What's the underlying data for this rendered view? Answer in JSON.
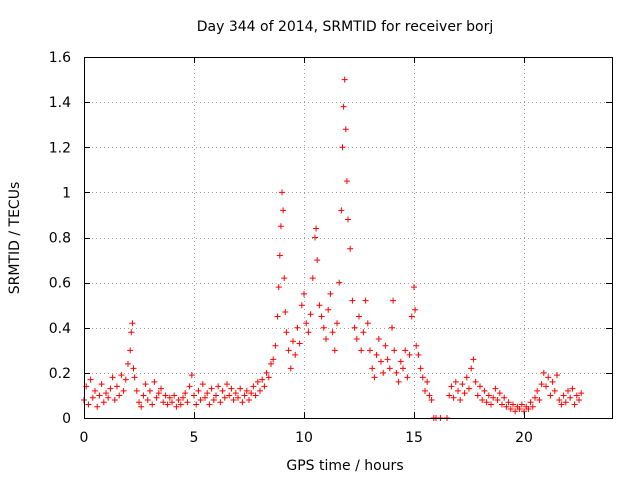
{
  "chart_data": {
    "type": "scatter",
    "title": "Day 344 of 2014, SRMTID for receiver borj",
    "xlabel": "GPS time / hours",
    "ylabel": "SRMTID / TECUs",
    "xlim": [
      0,
      24
    ],
    "ylim": [
      0,
      1.6
    ],
    "xticks": [
      0,
      5,
      10,
      15,
      20
    ],
    "xtick_labels": [
      "0",
      "5",
      "10",
      "15",
      "20"
    ],
    "yticks": [
      0,
      0.2,
      0.4,
      0.6,
      0.8,
      1.0,
      1.2,
      1.4,
      1.6
    ],
    "ytick_labels": [
      "0",
      "0.2",
      "0.4",
      "0.6",
      "0.8",
      "1",
      "1.2",
      "1.4",
      "1.6"
    ],
    "grid": true,
    "marker": "+",
    "series_color": "#ff0000",
    "series": [
      {
        "name": "SRMTID",
        "points": [
          [
            0.0,
            0.08
          ],
          [
            0.1,
            0.14
          ],
          [
            0.2,
            0.06
          ],
          [
            0.3,
            0.17
          ],
          [
            0.4,
            0.09
          ],
          [
            0.5,
            0.12
          ],
          [
            0.6,
            0.05
          ],
          [
            0.7,
            0.1
          ],
          [
            0.8,
            0.15
          ],
          [
            0.9,
            0.07
          ],
          [
            1.0,
            0.11
          ],
          [
            1.1,
            0.09
          ],
          [
            1.2,
            0.13
          ],
          [
            1.3,
            0.18
          ],
          [
            1.4,
            0.08
          ],
          [
            1.5,
            0.14
          ],
          [
            1.6,
            0.1
          ],
          [
            1.7,
            0.19
          ],
          [
            1.8,
            0.12
          ],
          [
            1.9,
            0.17
          ],
          [
            2.0,
            0.24
          ],
          [
            2.1,
            0.3
          ],
          [
            2.15,
            0.38
          ],
          [
            2.2,
            0.42
          ],
          [
            2.25,
            0.22
          ],
          [
            2.3,
            0.18
          ],
          [
            2.4,
            0.12
          ],
          [
            2.5,
            0.07
          ],
          [
            2.6,
            0.05
          ],
          [
            2.7,
            0.1
          ],
          [
            2.8,
            0.15
          ],
          [
            2.9,
            0.08
          ],
          [
            3.0,
            0.12
          ],
          [
            3.1,
            0.06
          ],
          [
            3.2,
            0.16
          ],
          [
            3.3,
            0.09
          ],
          [
            3.4,
            0.11
          ],
          [
            3.5,
            0.13
          ],
          [
            3.6,
            0.07
          ],
          [
            3.7,
            0.1
          ],
          [
            3.8,
            0.06
          ],
          [
            3.9,
            0.09
          ],
          [
            4.0,
            0.07
          ],
          [
            4.1,
            0.1
          ],
          [
            4.2,
            0.05
          ],
          [
            4.3,
            0.08
          ],
          [
            4.4,
            0.06
          ],
          [
            4.5,
            0.09
          ],
          [
            4.6,
            0.11
          ],
          [
            4.7,
            0.07
          ],
          [
            4.8,
            0.14
          ],
          [
            4.9,
            0.19
          ],
          [
            5.0,
            0.1
          ],
          [
            5.1,
            0.06
          ],
          [
            5.2,
            0.12
          ],
          [
            5.3,
            0.08
          ],
          [
            5.4,
            0.15
          ],
          [
            5.5,
            0.09
          ],
          [
            5.6,
            0.11
          ],
          [
            5.7,
            0.06
          ],
          [
            5.8,
            0.13
          ],
          [
            5.9,
            0.08
          ],
          [
            6.0,
            0.1
          ],
          [
            6.1,
            0.14
          ],
          [
            6.2,
            0.07
          ],
          [
            6.3,
            0.12
          ],
          [
            6.4,
            0.09
          ],
          [
            6.5,
            0.15
          ],
          [
            6.6,
            0.1
          ],
          [
            6.7,
            0.13
          ],
          [
            6.8,
            0.08
          ],
          [
            6.9,
            0.11
          ],
          [
            7.0,
            0.09
          ],
          [
            7.1,
            0.13
          ],
          [
            7.2,
            0.07
          ],
          [
            7.3,
            0.1
          ],
          [
            7.4,
            0.12
          ],
          [
            7.5,
            0.08
          ],
          [
            7.6,
            0.11
          ],
          [
            7.7,
            0.14
          ],
          [
            7.8,
            0.1
          ],
          [
            7.9,
            0.16
          ],
          [
            8.0,
            0.12
          ],
          [
            8.1,
            0.17
          ],
          [
            8.2,
            0.14
          ],
          [
            8.3,
            0.2
          ],
          [
            8.4,
            0.18
          ],
          [
            8.5,
            0.24
          ],
          [
            8.6,
            0.26
          ],
          [
            8.7,
            0.32
          ],
          [
            8.8,
            0.45
          ],
          [
            8.85,
            0.58
          ],
          [
            8.9,
            0.72
          ],
          [
            8.95,
            0.85
          ],
          [
            9.0,
            1.0
          ],
          [
            9.05,
            0.92
          ],
          [
            9.1,
            0.62
          ],
          [
            9.15,
            0.47
          ],
          [
            9.2,
            0.38
          ],
          [
            9.3,
            0.3
          ],
          [
            9.4,
            0.22
          ],
          [
            9.5,
            0.34
          ],
          [
            9.6,
            0.28
          ],
          [
            9.7,
            0.4
          ],
          [
            9.8,
            0.33
          ],
          [
            9.9,
            0.5
          ],
          [
            10.0,
            0.55
          ],
          [
            10.1,
            0.42
          ],
          [
            10.2,
            0.38
          ],
          [
            10.3,
            0.46
          ],
          [
            10.4,
            0.62
          ],
          [
            10.5,
            0.8
          ],
          [
            10.55,
            0.84
          ],
          [
            10.6,
            0.7
          ],
          [
            10.7,
            0.5
          ],
          [
            10.8,
            0.45
          ],
          [
            10.9,
            0.4
          ],
          [
            11.0,
            0.35
          ],
          [
            11.1,
            0.48
          ],
          [
            11.2,
            0.55
          ],
          [
            11.3,
            0.38
          ],
          [
            11.4,
            0.3
          ],
          [
            11.5,
            0.42
          ],
          [
            11.6,
            0.6
          ],
          [
            11.7,
            0.92
          ],
          [
            11.75,
            1.2
          ],
          [
            11.8,
            1.38
          ],
          [
            11.85,
            1.5
          ],
          [
            11.9,
            1.28
          ],
          [
            11.95,
            1.05
          ],
          [
            12.0,
            0.88
          ],
          [
            12.1,
            0.75
          ],
          [
            12.2,
            0.52
          ],
          [
            12.3,
            0.4
          ],
          [
            12.4,
            0.35
          ],
          [
            12.5,
            0.45
          ],
          [
            12.6,
            0.3
          ],
          [
            12.7,
            0.38
          ],
          [
            12.8,
            0.52
          ],
          [
            12.9,
            0.42
          ],
          [
            13.0,
            0.3
          ],
          [
            13.1,
            0.22
          ],
          [
            13.2,
            0.18
          ],
          [
            13.3,
            0.28
          ],
          [
            13.4,
            0.35
          ],
          [
            13.5,
            0.25
          ],
          [
            13.6,
            0.2
          ],
          [
            13.7,
            0.32
          ],
          [
            13.8,
            0.26
          ],
          [
            13.9,
            0.22
          ],
          [
            14.0,
            0.4
          ],
          [
            14.05,
            0.52
          ],
          [
            14.1,
            0.3
          ],
          [
            14.2,
            0.2
          ],
          [
            14.3,
            0.16
          ],
          [
            14.4,
            0.25
          ],
          [
            14.5,
            0.22
          ],
          [
            14.6,
            0.3
          ],
          [
            14.7,
            0.18
          ],
          [
            14.8,
            0.28
          ],
          [
            14.9,
            0.45
          ],
          [
            15.0,
            0.58
          ],
          [
            15.05,
            0.48
          ],
          [
            15.1,
            0.32
          ],
          [
            15.2,
            0.28
          ],
          [
            15.3,
            0.22
          ],
          [
            15.4,
            0.18
          ],
          [
            15.5,
            0.12
          ],
          [
            15.6,
            0.16
          ],
          [
            15.7,
            0.1
          ],
          [
            15.8,
            0.08
          ],
          [
            15.9,
            0.0
          ],
          [
            16.0,
            0.0
          ],
          [
            16.2,
            0.0
          ],
          [
            16.5,
            0.0
          ],
          [
            16.6,
            0.1
          ],
          [
            16.7,
            0.14
          ],
          [
            16.8,
            0.09
          ],
          [
            16.9,
            0.16
          ],
          [
            17.0,
            0.12
          ],
          [
            17.1,
            0.08
          ],
          [
            17.2,
            0.15
          ],
          [
            17.3,
            0.11
          ],
          [
            17.4,
            0.18
          ],
          [
            17.5,
            0.13
          ],
          [
            17.6,
            0.22
          ],
          [
            17.7,
            0.26
          ],
          [
            17.8,
            0.16
          ],
          [
            17.9,
            0.1
          ],
          [
            18.0,
            0.14
          ],
          [
            18.1,
            0.08
          ],
          [
            18.2,
            0.12
          ],
          [
            18.3,
            0.07
          ],
          [
            18.4,
            0.1
          ],
          [
            18.5,
            0.06
          ],
          [
            18.6,
            0.09
          ],
          [
            18.7,
            0.13
          ],
          [
            18.8,
            0.08
          ],
          [
            18.9,
            0.11
          ],
          [
            19.0,
            0.06
          ],
          [
            19.1,
            0.09
          ],
          [
            19.2,
            0.05
          ],
          [
            19.3,
            0.07
          ],
          [
            19.4,
            0.04
          ],
          [
            19.5,
            0.06
          ],
          [
            19.6,
            0.03
          ],
          [
            19.7,
            0.05
          ],
          [
            19.8,
            0.04
          ],
          [
            19.9,
            0.06
          ],
          [
            20.0,
            0.03
          ],
          [
            20.1,
            0.05
          ],
          [
            20.2,
            0.04
          ],
          [
            20.3,
            0.07
          ],
          [
            20.4,
            0.05
          ],
          [
            20.5,
            0.09
          ],
          [
            20.6,
            0.12
          ],
          [
            20.7,
            0.08
          ],
          [
            20.8,
            0.15
          ],
          [
            20.9,
            0.2
          ],
          [
            21.0,
            0.14
          ],
          [
            21.1,
            0.18
          ],
          [
            21.2,
            0.1
          ],
          [
            21.3,
            0.16
          ],
          [
            21.4,
            0.12
          ],
          [
            21.5,
            0.19
          ],
          [
            21.6,
            0.08
          ],
          [
            21.7,
            0.06
          ],
          [
            21.8,
            0.1
          ],
          [
            21.9,
            0.07
          ],
          [
            22.0,
            0.12
          ],
          [
            22.1,
            0.09
          ],
          [
            22.2,
            0.13
          ],
          [
            22.3,
            0.06
          ],
          [
            22.4,
            0.1
          ],
          [
            22.5,
            0.08
          ],
          [
            22.6,
            0.11
          ]
        ]
      }
    ]
  }
}
